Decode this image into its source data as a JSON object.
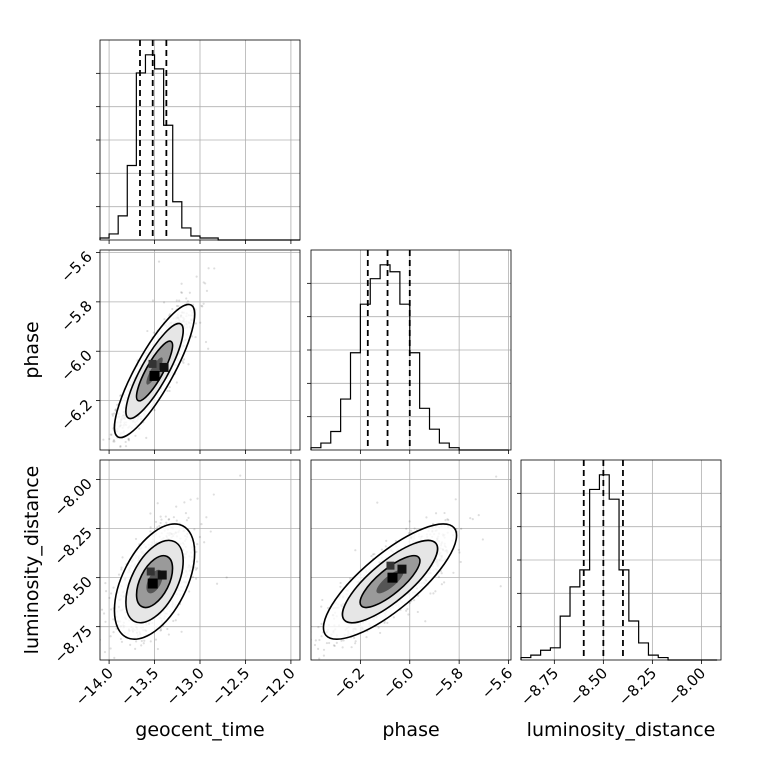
{
  "chart_data": {
    "type": "corner",
    "grid": true,
    "parameters": [
      {
        "name": "geocent_time",
        "label": "geocent_time",
        "range": [
          -14.1,
          -11.9
        ],
        "ticks": [
          -14.0,
          -13.5,
          -13.0,
          -12.5,
          -12.0
        ],
        "tick_labels": [
          "−14.0",
          "−13.5",
          "−13.0",
          "−12.5",
          "−12.0"
        ],
        "quantiles": [
          -13.66,
          -13.52,
          -13.37
        ],
        "histogram": {
          "edges": [
            -14.1,
            -14.0,
            -13.9,
            -13.8,
            -13.7,
            -13.6,
            -13.5,
            -13.4,
            -13.3,
            -13.2,
            -13.1,
            -13.0,
            -12.9,
            -12.8,
            -12.7,
            -12.6,
            -12.5,
            -12.4,
            -12.3,
            -12.2,
            -12.1,
            -12.0,
            -11.9
          ],
          "counts": [
            1,
            3,
            12,
            37,
            83,
            92,
            85,
            57,
            19,
            6,
            2,
            1,
            1,
            0,
            0,
            0,
            0,
            0,
            0,
            0,
            0,
            0
          ]
        }
      },
      {
        "name": "phase",
        "label": "phase",
        "range": [
          -6.4,
          -5.59
        ],
        "ticks": [
          -6.2,
          -6.0,
          -5.8,
          -5.6
        ],
        "tick_labels": [
          "−6.2",
          "−6.0",
          "−5.8",
          "−5.6"
        ],
        "quantiles": [
          -6.17,
          -6.09,
          -6.0
        ],
        "histogram": {
          "edges": [
            -6.4,
            -6.36,
            -6.32,
            -6.28,
            -6.24,
            -6.2,
            -6.16,
            -6.12,
            -6.08,
            -6.04,
            -6.0,
            -5.96,
            -5.92,
            -5.88,
            -5.84,
            -5.8,
            -5.76,
            -5.72,
            -5.68,
            -5.64,
            -5.6
          ],
          "counts": [
            1,
            3,
            8,
            22,
            42,
            63,
            74,
            80,
            77,
            63,
            42,
            18,
            9,
            3,
            1,
            0,
            0,
            0,
            0,
            0
          ]
        }
      },
      {
        "name": "luminosity_distance",
        "label": "luminosity_distance",
        "range": [
          -8.92,
          -7.9
        ],
        "ticks": [
          -8.75,
          -8.5,
          -8.25,
          -8.0
        ],
        "tick_labels": [
          "−8.75",
          "−8.50",
          "−8.25",
          "−8.00"
        ],
        "quantiles": [
          -8.6,
          -8.5,
          -8.4
        ],
        "histogram": {
          "edges": [
            -8.92,
            -8.87,
            -8.82,
            -8.77,
            -8.72,
            -8.67,
            -8.62,
            -8.57,
            -8.52,
            -8.47,
            -8.42,
            -8.37,
            -8.32,
            -8.27,
            -8.22,
            -8.17,
            -8.12,
            -8.07,
            -8.02,
            -7.97,
            -7.92
          ],
          "counts": [
            1,
            2,
            4,
            5,
            18,
            30,
            37,
            70,
            76,
            66,
            37,
            16,
            7,
            2,
            1,
            0,
            0,
            0,
            0,
            0
          ]
        }
      }
    ],
    "pairs": [
      {
        "x": "geocent_time",
        "y": "phase",
        "mean": [
          -13.5,
          -6.08
        ],
        "sd": [
          0.18,
          0.11
        ],
        "corr": 0.85,
        "density_peak": [
          -13.5,
          -6.1
        ]
      },
      {
        "x": "geocent_time",
        "y": "luminosity_distance",
        "mean": [
          -13.5,
          -8.52
        ],
        "sd": [
          0.18,
          0.12
        ],
        "corr": 0.5,
        "density_peak": [
          -13.52,
          -8.53
        ]
      },
      {
        "x": "phase",
        "y": "luminosity_distance",
        "mean": [
          -6.08,
          -8.52
        ],
        "sd": [
          0.11,
          0.12
        ],
        "corr": 0.8,
        "density_peak": [
          -6.07,
          -8.5
        ]
      }
    ]
  }
}
